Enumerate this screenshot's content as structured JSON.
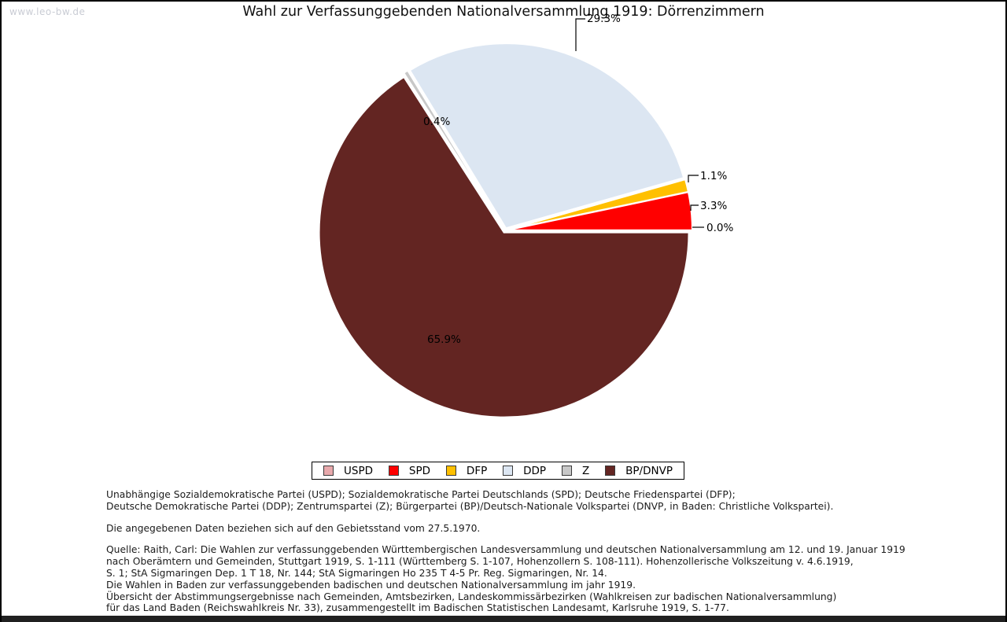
{
  "watermark": "www.leo-bw.de",
  "title": "Wahl zur Verfassunggebenden Nationalversammlung 1919: Dörrenzimmern",
  "chart_data": {
    "type": "pie",
    "title": "Wahl zur Verfassunggebenden Nationalversammlung 1919: Dörrenzimmern",
    "unit": "%",
    "start_angle_deg": 0,
    "direction": "counterclockwise",
    "legend_position": "bottom",
    "slices": [
      {
        "label": "USPD",
        "value": 0.0,
        "pct_label": "0.0%",
        "color": "#e8a9ac"
      },
      {
        "label": "SPD",
        "value": 3.3,
        "pct_label": "3.3%",
        "color": "#ff0000"
      },
      {
        "label": "DFP",
        "value": 1.1,
        "pct_label": "1.1%",
        "color": "#ffc000"
      },
      {
        "label": "DDP",
        "value": 29.3,
        "pct_label": "29.3%",
        "color": "#dce6f2"
      },
      {
        "label": "Z",
        "value": 0.4,
        "pct_label": "0.4%",
        "color": "#c8c8c8"
      },
      {
        "label": "BP/DNVP",
        "value": 65.9,
        "pct_label": "65.9%",
        "color": "#632522"
      }
    ]
  },
  "footer": {
    "legend_note_lines": [
      "Unabhängige Sozialdemokratische Partei (USPD); Sozialdemokratische Partei Deutschlands (SPD); Deutsche Friedenspartei (DFP);",
      "Deutsche Demokratische Partei (DDP); Zentrumspartei (Z); Bürgerpartei (BP)/Deutsch-Nationale Volkspartei (DNVP, in Baden: Christliche Volkspartei)."
    ],
    "data_note": "Die angegebenen Daten beziehen sich auf den Gebietsstand vom 27.5.1970.",
    "source_lines": [
      "Quelle: Raith, Carl: Die Wahlen zur verfassunggebenden Württembergischen Landesversammlung und deutschen Nationalversammlung am 12. und 19. Januar 1919",
      "nach Oberämtern und Gemeinden, Stuttgart 1919, S. 1-111 (Württemberg S. 1-107, Hohenzollern S. 108-111). Hohenzollerische Volkszeitung v. 4.6.1919,",
      "S. 1; StA Sigmaringen Dep. 1 T 18, Nr. 144; StA Sigmaringen Ho 235 T 4-5 Pr. Reg. Sigmaringen, Nr. 14.",
      "Die Wahlen in Baden zur verfassunggebenden badischen und deutschen Nationalversammlung im jahr 1919.",
      "Übersicht der Abstimmungsergebnisse nach Gemeinden, Amtsbezirken, Landeskommissärbezirken (Wahlkreisen zur badischen Nationalversammlung)",
      "für das Land Baden (Reichswahlkreis Nr. 33), zusammengestellt im Badischen Statistischen Landesamt, Karlsruhe 1919, S. 1-77."
    ]
  }
}
